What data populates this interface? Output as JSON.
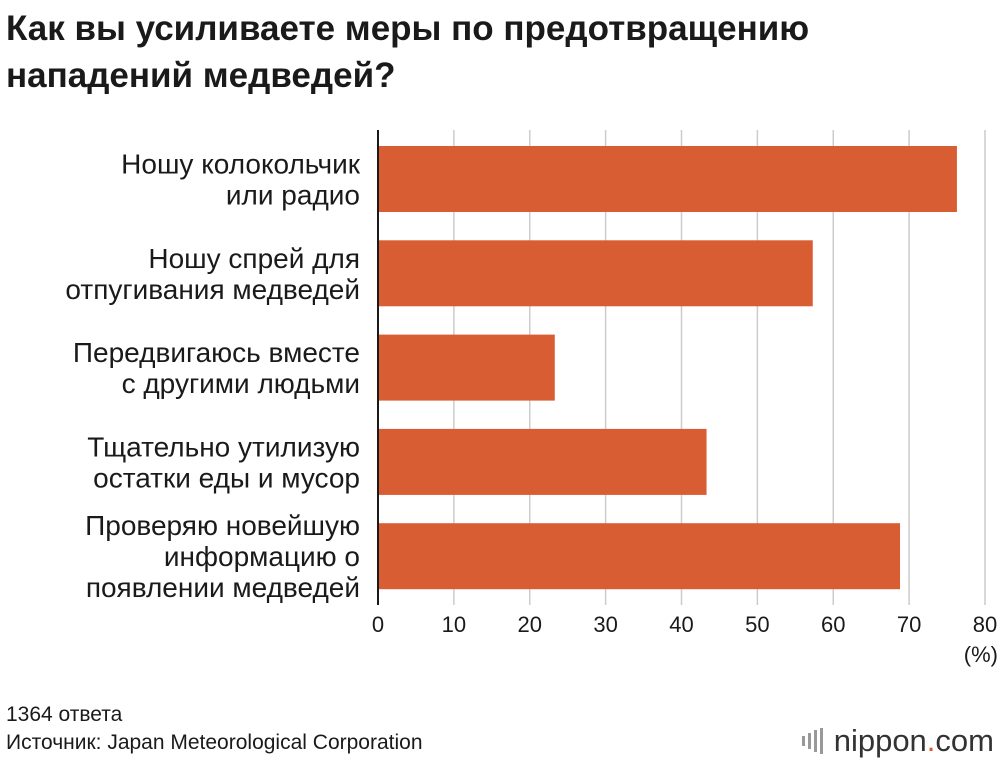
{
  "chart_data": {
    "type": "bar",
    "orientation": "horizontal",
    "title": "Как вы усиливаете меры по предотвращению нападений медведей?",
    "title_lines": [
      "Как вы усиливаете меры по предотвращению",
      "нападений медведей?"
    ],
    "categories": [
      [
        "Ношу колокольчик",
        "или радио"
      ],
      [
        "Ношу спрей для",
        "отпугивания медведей"
      ],
      [
        "Передвигаюсь вместе",
        "с другими людьми"
      ],
      [
        "Тщательно утилизую",
        "остатки еды и мусор"
      ],
      [
        "Проверяю новейшую",
        "информацию о",
        "появлении медведей"
      ]
    ],
    "values": [
      76.3,
      57.3,
      23.3,
      43.3,
      68.8
    ],
    "xlim": [
      0,
      80
    ],
    "xticks": [
      "0",
      "10",
      "20",
      "30",
      "40",
      "50",
      "60",
      "70",
      "80"
    ],
    "xunit": "(%)",
    "bar_color": "#d95d33",
    "grid_color": "#cccccc",
    "grid": true
  },
  "footer": {
    "responses": "1364 ответа",
    "source": "Источник: Japan Meteorological Corporation"
  },
  "logo": {
    "name": "nippon",
    "dot": ".",
    "tld": "com",
    "accent": "#e0582a"
  }
}
